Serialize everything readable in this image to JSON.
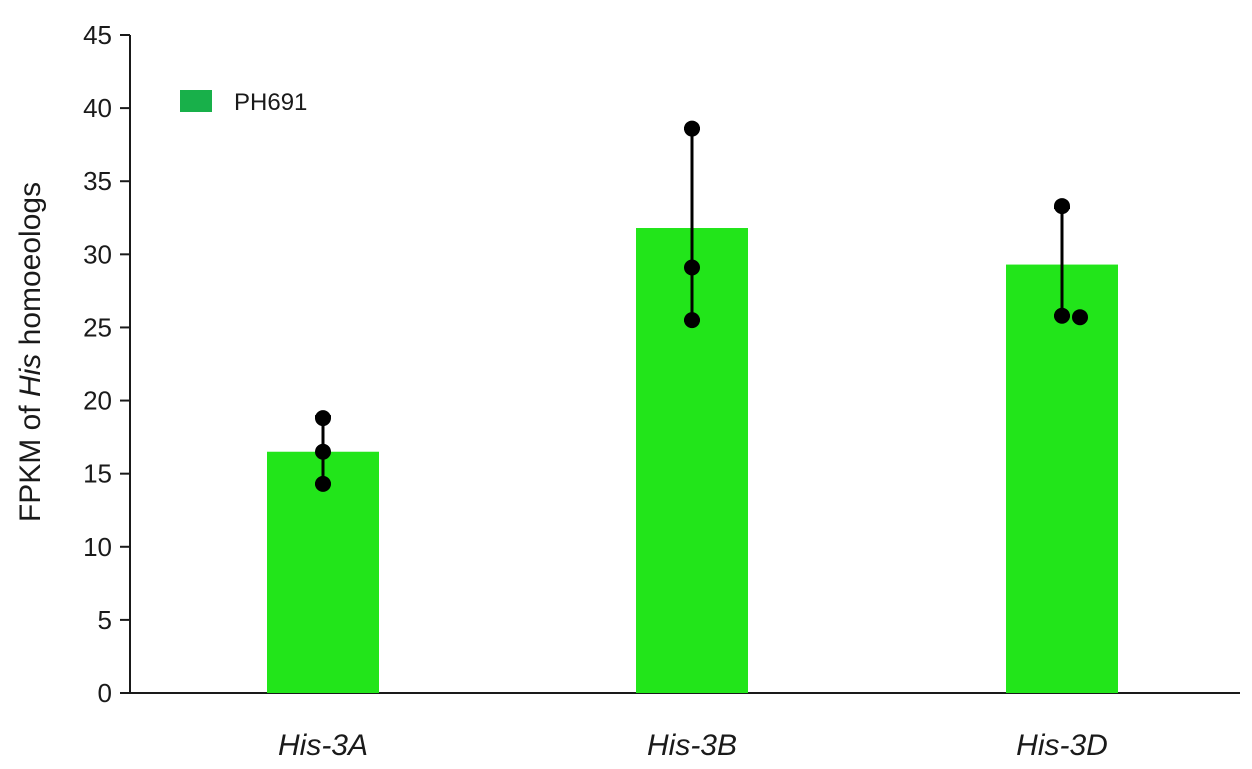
{
  "chart_data": {
    "type": "bar",
    "categories": [
      "His-3A",
      "His-3B",
      "His-3D"
    ],
    "series": [
      {
        "name": "PH691",
        "color": "#22e51a",
        "values": [
          16.5,
          31.8,
          29.3
        ],
        "error_upper": [
          18.9,
          38.6,
          33.2
        ],
        "error_lower": [
          14.3,
          25.5,
          25.8
        ],
        "replicates": [
          [
            18.8,
            16.5,
            14.3
          ],
          [
            38.6,
            29.1,
            25.5
          ],
          [
            33.3,
            25.8,
            25.7
          ]
        ]
      }
    ],
    "ylabel_prefix": "FPKM of ",
    "ylabel_italic": "His",
    "ylabel_suffix": " homoeologs",
    "ylim": [
      0,
      45
    ],
    "yticks": [
      0,
      5,
      10,
      15,
      20,
      25,
      30,
      35,
      40,
      45
    ],
    "grid": false,
    "legend": {
      "position": "top-left",
      "label": "PH691",
      "color": "#18b04a"
    }
  }
}
